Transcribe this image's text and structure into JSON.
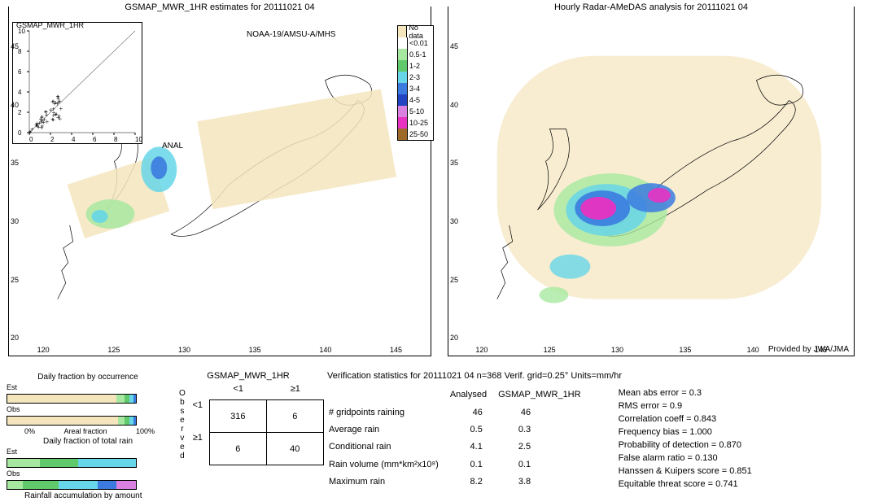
{
  "page": {
    "left_title": "GSMAP_MWR_1HR estimates for 20111021 04",
    "right_title": "Hourly Radar-AMeDAS analysis for 20111021 04",
    "inset_title": "GSMAP_MWR_1HR",
    "anal_label": "ANAL",
    "noaa_label": "NOAA-19/AMSU-A/MHS",
    "provided_by": "Provided by JWA/JMA",
    "background_color": "#ffffff"
  },
  "legend": {
    "items": [
      {
        "label": "No data",
        "color": "#f5e5bd"
      },
      {
        "label": "<0.01",
        "color": "#ffffff"
      },
      {
        "label": "0.5-1",
        "color": "#a7e8a0"
      },
      {
        "label": "1-2",
        "color": "#60c96c"
      },
      {
        "label": "2-3",
        "color": "#66d6e8"
      },
      {
        "label": "3-4",
        "color": "#3b7be0"
      },
      {
        "label": "4-5",
        "color": "#2243c2"
      },
      {
        "label": "5-10",
        "color": "#d980e0"
      },
      {
        "label": "10-25",
        "color": "#e832c2"
      },
      {
        "label": "25-50",
        "color": "#9c6b2a"
      }
    ]
  },
  "left_map": {
    "lon_ticks": [
      120,
      125,
      130,
      135,
      140,
      145
    ],
    "lat_ticks": [
      20,
      25,
      30,
      35,
      40,
      45
    ],
    "lon_range": [
      118,
      148
    ],
    "lat_range": [
      18,
      48
    ],
    "inset": {
      "x_ticks": [
        0,
        2,
        4,
        6,
        8,
        10
      ],
      "y_ticks": [
        0,
        2,
        4,
        6,
        8,
        10
      ]
    }
  },
  "right_map": {
    "lon_ticks": [
      120,
      125,
      130,
      135,
      140,
      145
    ],
    "lat_ticks": [
      20,
      25,
      30,
      35,
      40,
      45
    ],
    "rain_field_note": "Intense precip over Kyushu/SW Japan (magenta), broad No-data tan over ocean"
  },
  "fractions": {
    "occurrence_title": "Daily fraction by occurrence",
    "totalrain_title": "Daily fraction of total rain",
    "accum_title": "Rainfall accumulation by amount",
    "areal_label": "Areal fraction",
    "rows": {
      "est_label": "Est",
      "obs_label": "Obs"
    },
    "occurrence_est": [
      {
        "color": "#f5e5bd",
        "w": 0.85
      },
      {
        "color": "#a7e8a0",
        "w": 0.06
      },
      {
        "color": "#60c96c",
        "w": 0.04
      },
      {
        "color": "#66d6e8",
        "w": 0.03
      },
      {
        "color": "#3b7be0",
        "w": 0.02
      }
    ],
    "occurrence_obs": [
      {
        "color": "#f5e5bd",
        "w": 0.86
      },
      {
        "color": "#a7e8a0",
        "w": 0.05
      },
      {
        "color": "#60c96c",
        "w": 0.04
      },
      {
        "color": "#66d6e8",
        "w": 0.03
      },
      {
        "color": "#3b7be0",
        "w": 0.02
      }
    ],
    "totalrain_est": [
      {
        "color": "#a7e8a0",
        "w": 0.25
      },
      {
        "color": "#60c96c",
        "w": 0.3
      },
      {
        "color": "#66d6e8",
        "w": 0.45
      }
    ],
    "totalrain_obs": [
      {
        "color": "#a7e8a0",
        "w": 0.12
      },
      {
        "color": "#60c96c",
        "w": 0.28
      },
      {
        "color": "#66d6e8",
        "w": 0.3
      },
      {
        "color": "#3b7be0",
        "w": 0.15
      },
      {
        "color": "#d980e0",
        "w": 0.15
      }
    ],
    "axis_0": "0%",
    "axis_100": "100%"
  },
  "contingency": {
    "title": "GSMAP_MWR_1HR",
    "col_lt": "<1",
    "col_ge": "≥1",
    "row_lt": "<1",
    "row_ge": "≥1",
    "observed_label": "Observed",
    "cells": {
      "a": "316",
      "b": "6",
      "c": "6",
      "d": "40"
    }
  },
  "stats": {
    "header": "Verification statistics for 20111021 04  n=368  Verif. grid=0.25°  Units=mm/hr",
    "col_analysed": "Analysed",
    "col_model": "GSMAP_MWR_1HR",
    "rows": [
      {
        "label": "# gridpoints raining",
        "a": "46",
        "b": "46"
      },
      {
        "label": "Average rain",
        "a": "0.5",
        "b": "0.3"
      },
      {
        "label": "Conditional rain",
        "a": "4.1",
        "b": "2.5"
      },
      {
        "label": "Rain volume (mm*km²x10⁸)",
        "a": "0.1",
        "b": "0.1"
      },
      {
        "label": "Maximum rain",
        "a": "8.2",
        "b": "3.8"
      }
    ],
    "metrics": [
      {
        "label": "Mean abs error",
        "v": "0.3"
      },
      {
        "label": "RMS error",
        "v": "0.9"
      },
      {
        "label": "Correlation coeff",
        "v": "0.843"
      },
      {
        "label": "Frequency bias",
        "v": "1.000"
      },
      {
        "label": "Probability of detection",
        "v": "0.870"
      },
      {
        "label": "False alarm ratio",
        "v": "0.130"
      },
      {
        "label": "Hanssen & Kuipers score",
        "v": "0.851"
      },
      {
        "label": "Equitable threat score",
        "v": "0.741"
      }
    ]
  }
}
